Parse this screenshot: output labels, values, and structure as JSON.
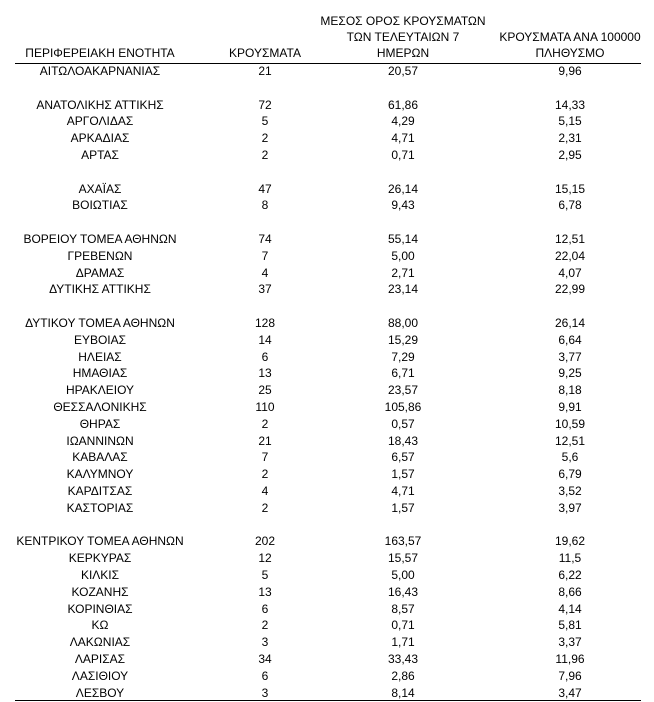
{
  "table": {
    "header": [
      [
        "ΠΕΡΙΦΕΡΕΙΑΚΗ ΕΝΟΤΗΤΑ"
      ],
      [
        "ΚΡΟΥΣΜΑΤΑ"
      ],
      [
        "ΜΕΣΟΣ ΟΡΟΣ ΚΡΟΥΣΜΑΤΩΝ",
        "ΤΩΝ ΤΕΛΕΥΤΑΙΩΝ 7",
        "ΗΜΕΡΩΝ"
      ],
      [
        "ΚΡΟΥΣΜΑΤΑ ΑΝΑ 100000",
        "ΠΛΗΘΥΣΜΟ"
      ]
    ],
    "groups": [
      [
        [
          "ΑΙΤΩΛΟΑΚΑΡΝΑΝΙΑΣ",
          "21",
          "20,57",
          "9,96"
        ]
      ],
      [
        [
          "ΑΝΑΤΟΛΙΚΗΣ ΑΤΤΙΚΗΣ",
          "72",
          "61,86",
          "14,33"
        ],
        [
          "ΑΡΓΟΛΙΔΑΣ",
          "5",
          "4,29",
          "5,15"
        ],
        [
          "ΑΡΚΑΔΙΑΣ",
          "2",
          "4,71",
          "2,31"
        ],
        [
          "ΑΡΤΑΣ",
          "2",
          "0,71",
          "2,95"
        ]
      ],
      [
        [
          "ΑΧΑΪΑΣ",
          "47",
          "26,14",
          "15,15"
        ],
        [
          "ΒΟΙΩΤΙΑΣ",
          "8",
          "9,43",
          "6,78"
        ]
      ],
      [
        [
          "ΒΟΡΕΙΟΥ ΤΟΜΕΑ ΑΘΗΝΩΝ",
          "74",
          "55,14",
          "12,51"
        ],
        [
          "ΓΡΕΒΕΝΩΝ",
          "7",
          "5,00",
          "22,04"
        ],
        [
          "ΔΡΑΜΑΣ",
          "4",
          "2,71",
          "4,07"
        ],
        [
          "ΔΥΤΙΚΗΣ ΑΤΤΙΚΗΣ",
          "37",
          "23,14",
          "22,99"
        ]
      ],
      [
        [
          "ΔΥΤΙΚΟΥ ΤΟΜΕΑ ΑΘΗΝΩΝ",
          "128",
          "88,00",
          "26,14"
        ],
        [
          "ΕΥΒΟΙΑΣ",
          "14",
          "15,29",
          "6,64"
        ],
        [
          "ΗΛΕΙΑΣ",
          "6",
          "7,29",
          "3,77"
        ],
        [
          "ΗΜΑΘΙΑΣ",
          "13",
          "6,71",
          "9,25"
        ],
        [
          "ΗΡΑΚΛΕΙΟΥ",
          "25",
          "23,57",
          "8,18"
        ],
        [
          "ΘΕΣΣΑΛΟΝΙΚΗΣ",
          "110",
          "105,86",
          "9,91"
        ],
        [
          "ΘΗΡΑΣ",
          "2",
          "0,57",
          "10,59"
        ],
        [
          "ΙΩΑΝΝΙΝΩΝ",
          "21",
          "18,43",
          "12,51"
        ],
        [
          "ΚΑΒΑΛΑΣ",
          "7",
          "6,57",
          "5,6"
        ],
        [
          "ΚΑΛΥΜΝΟΥ",
          "2",
          "1,57",
          "6,79"
        ],
        [
          "ΚΑΡΔΙΤΣΑΣ",
          "4",
          "4,71",
          "3,52"
        ],
        [
          "ΚΑΣΤΟΡΙΑΣ",
          "2",
          "1,57",
          "3,97"
        ]
      ],
      [
        [
          "ΚΕΝΤΡΙΚΟΥ ΤΟΜΕΑ ΑΘΗΝΩΝ",
          "202",
          "163,57",
          "19,62"
        ],
        [
          "ΚΕΡΚΥΡΑΣ",
          "12",
          "15,57",
          "11,5"
        ],
        [
          "ΚΙΛΚΙΣ",
          "5",
          "5,00",
          "6,22"
        ],
        [
          "ΚΟΖΑΝΗΣ",
          "13",
          "16,43",
          "8,66"
        ],
        [
          "ΚΟΡΙΝΘΙΑΣ",
          "6",
          "8,57",
          "4,14"
        ],
        [
          "ΚΩ",
          "2",
          "0,71",
          "5,81"
        ],
        [
          "ΛΑΚΩΝΙΑΣ",
          "3",
          "1,71",
          "3,37"
        ],
        [
          "ΛΑΡΙΣΑΣ",
          "34",
          "33,43",
          "11,96"
        ],
        [
          "ΛΑΣΙΘΙΟΥ",
          "6",
          "2,86",
          "7,96"
        ],
        [
          "ΛΕΣΒΟΥ",
          "3",
          "8,14",
          "3,47"
        ]
      ]
    ]
  }
}
